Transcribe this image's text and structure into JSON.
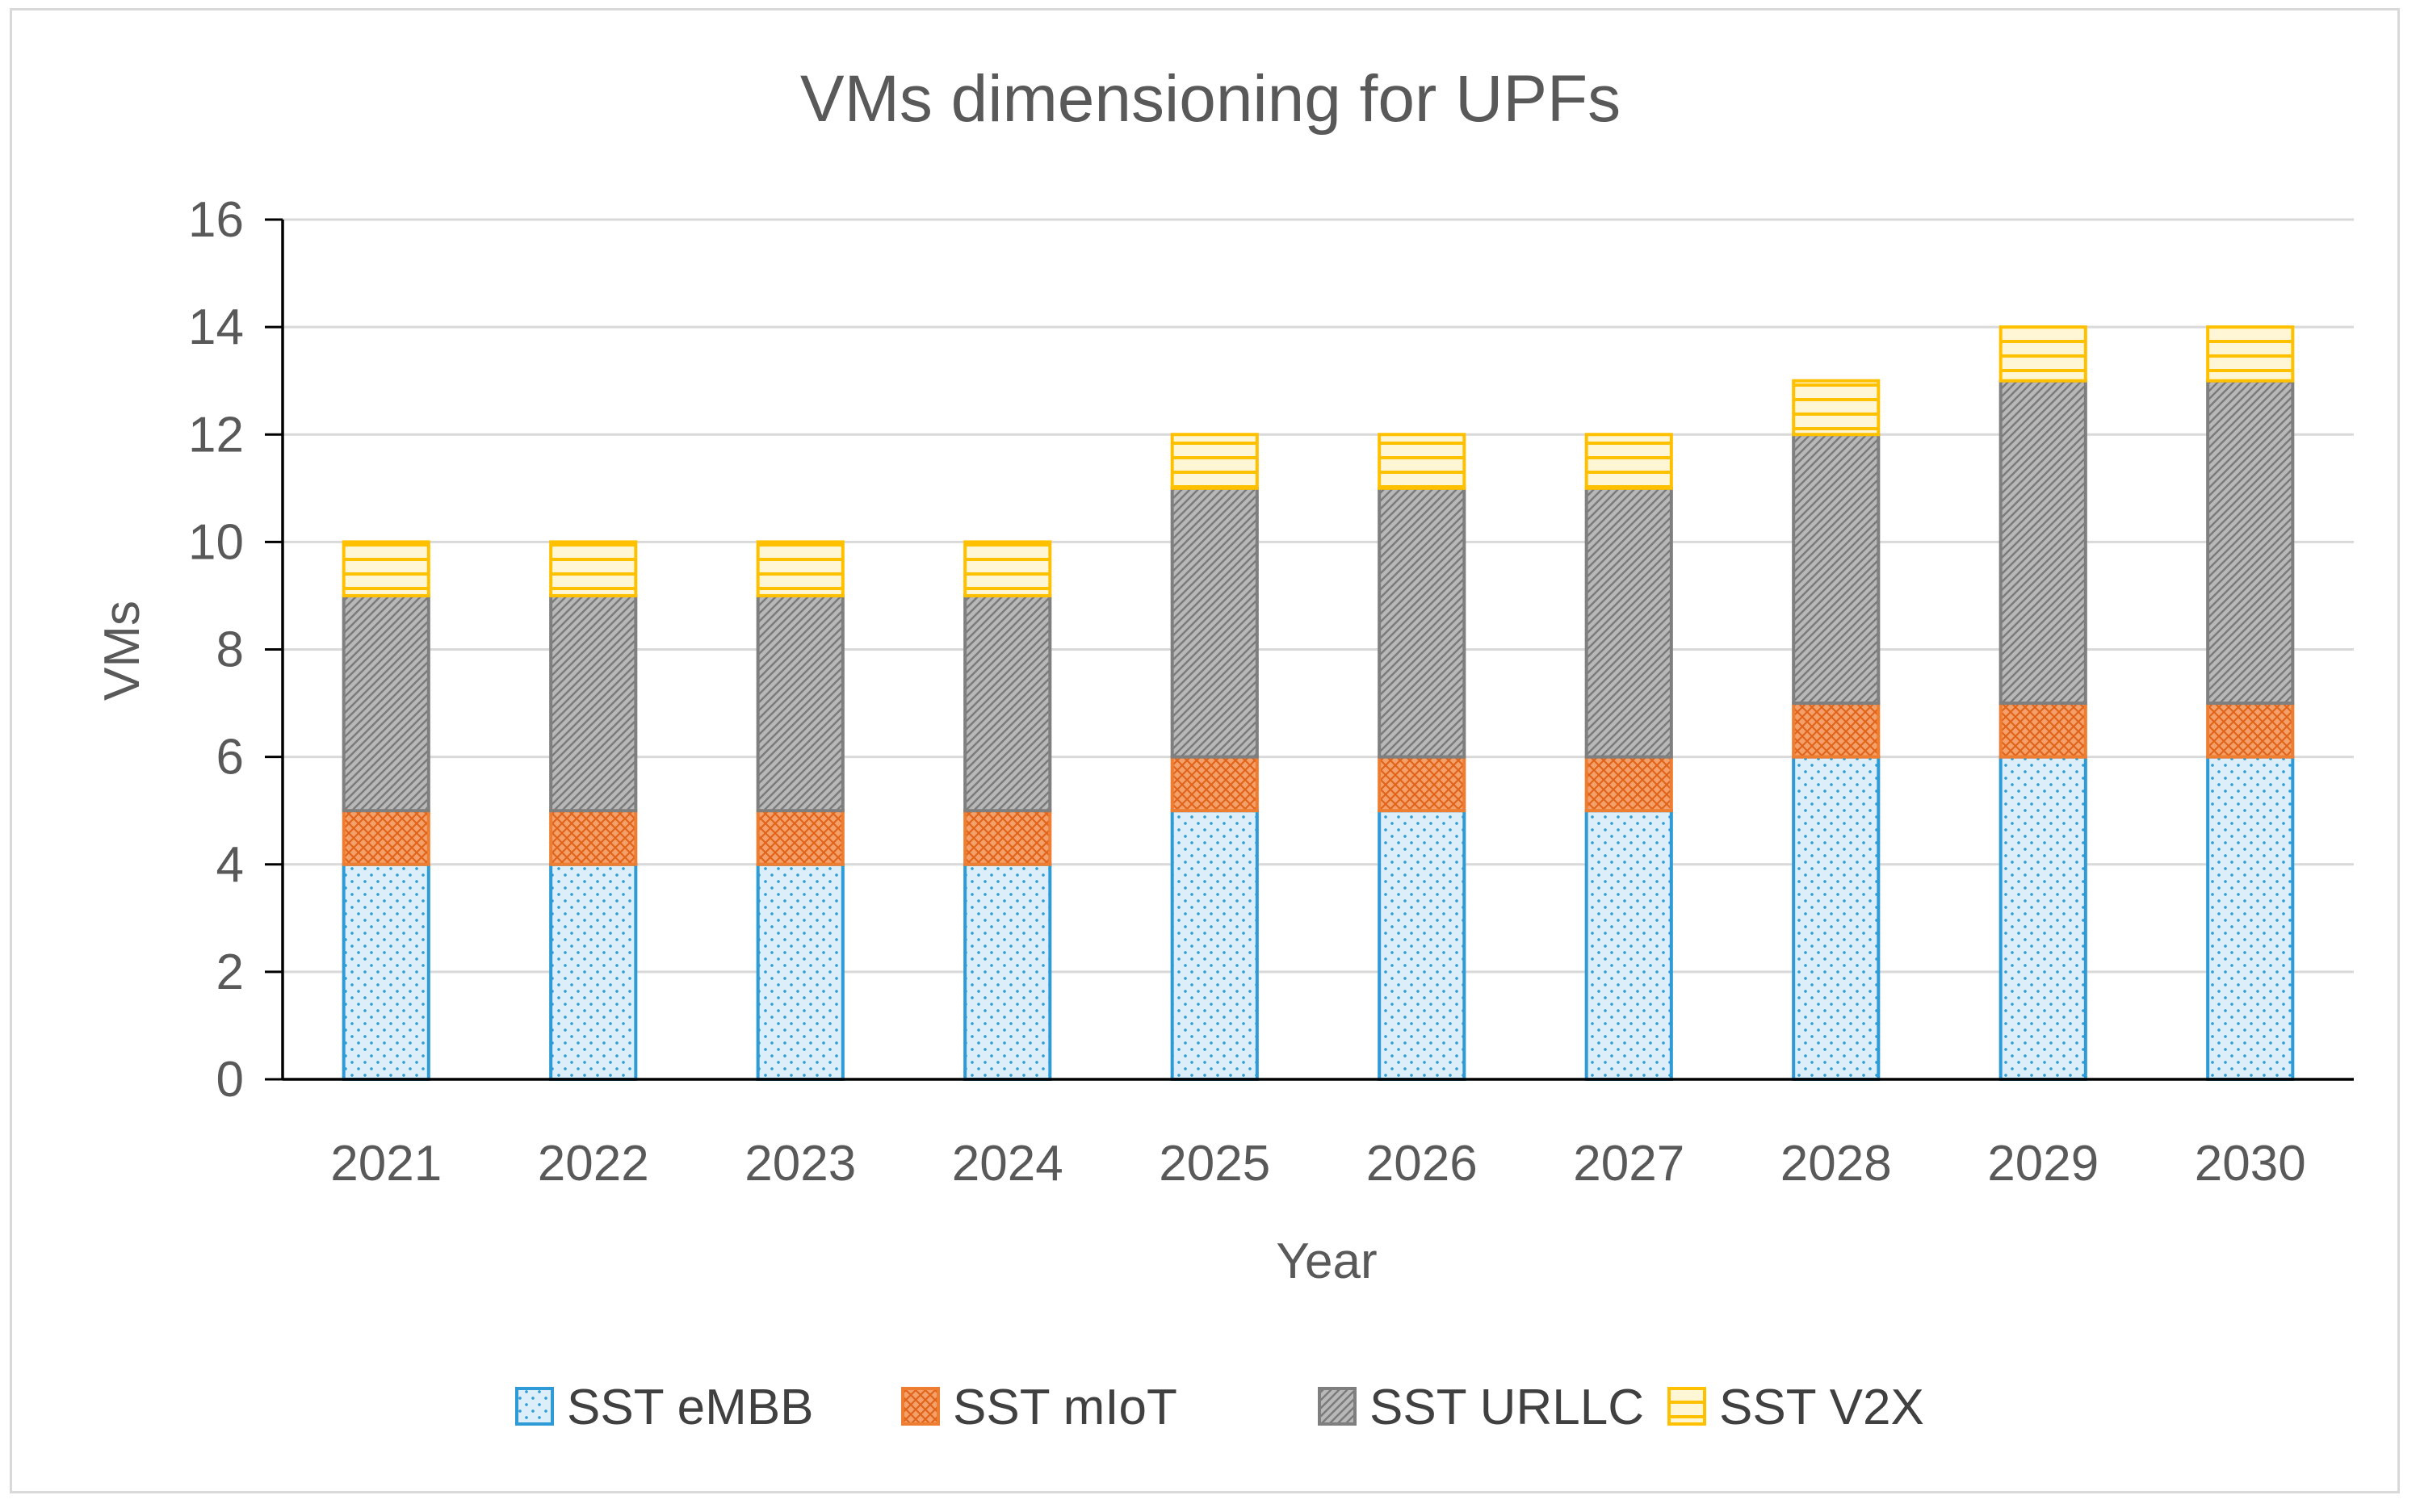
{
  "chart_data": {
    "type": "bar",
    "stacked": true,
    "title": "VMs dimensioning for UPFs",
    "xlabel": "Year",
    "ylabel": "VMs",
    "ylim": [
      0,
      16
    ],
    "ytick_step": 2,
    "yticks": [
      "0",
      "2",
      "4",
      "6",
      "8",
      "10",
      "12",
      "14",
      "16"
    ],
    "grid": true,
    "legend_position": "bottom",
    "categories": [
      "2021",
      "2022",
      "2023",
      "2024",
      "2025",
      "2026",
      "2027",
      "2028",
      "2029",
      "2030"
    ],
    "series": [
      {
        "name": "SST eMBB",
        "values": [
          4,
          4,
          4,
          4,
          5,
          5,
          5,
          6,
          6,
          6
        ],
        "fill": "#dbeef9",
        "stroke": "#2e9ad6",
        "pattern": "dots"
      },
      {
        "name": "SST mIoT",
        "values": [
          1,
          1,
          1,
          1,
          1,
          1,
          1,
          1,
          1,
          1
        ],
        "fill": "#f4a06b",
        "stroke": "#ed7d31",
        "pattern": "crosshatch"
      },
      {
        "name": "SST URLLC",
        "values": [
          4,
          4,
          4,
          4,
          5,
          5,
          5,
          5,
          6,
          6
        ],
        "fill": "#b3b3b3",
        "stroke": "#7f7f7f",
        "pattern": "diagonal"
      },
      {
        "name": "SST V2X",
        "values": [
          1,
          1,
          1,
          1,
          1,
          1,
          1,
          1,
          1,
          1
        ],
        "fill": "#fff2c2",
        "stroke": "#ffc000",
        "pattern": "horizontal"
      }
    ]
  },
  "colors": {
    "text": "#595959",
    "gridline": "#d9d9d9",
    "axis": "#000000",
    "frame": "#d9d9d9"
  }
}
